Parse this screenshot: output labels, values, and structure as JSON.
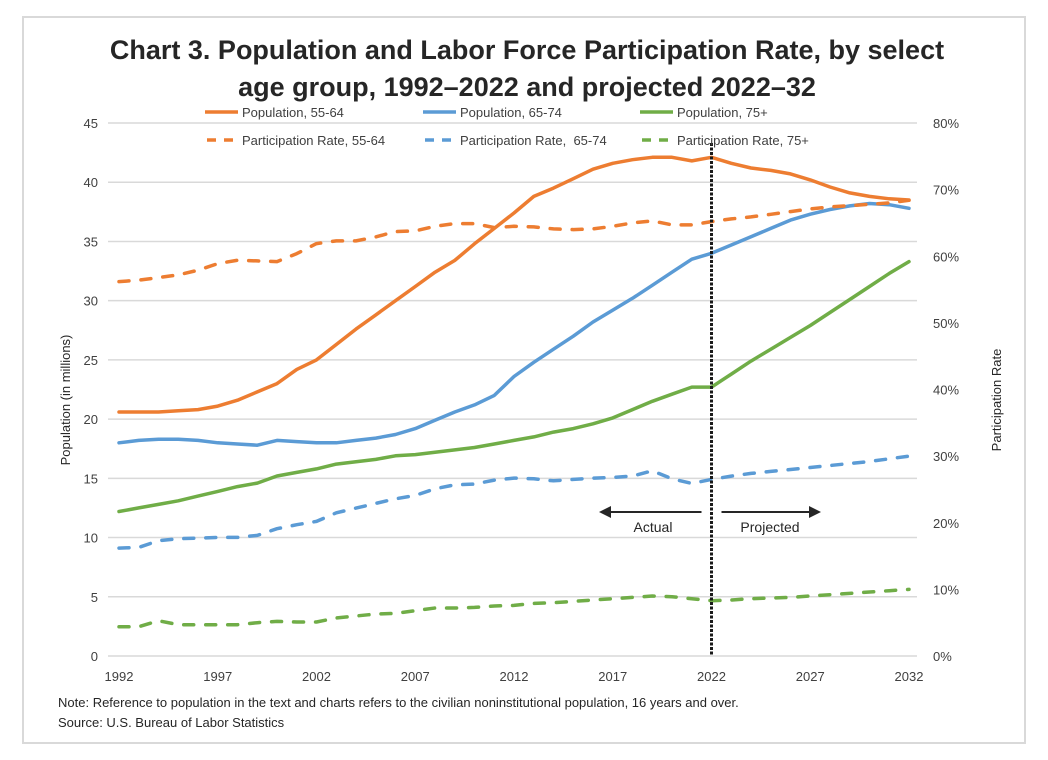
{
  "chart_data": {
    "type": "line",
    "title_lines": [
      "Chart 3. Population and Labor Force Participation Rate, by select",
      "age group, 1992–2022 and projected 2022–32"
    ],
    "xlabel": "",
    "ylabel": "Population (in millions)",
    "y2label": "Participation Rate",
    "ylim": [
      0,
      45
    ],
    "y2lim": [
      0,
      80
    ],
    "grid": true,
    "legend_position": "top",
    "x": [
      1992,
      1993,
      1994,
      1995,
      1996,
      1997,
      1998,
      1999,
      2000,
      2001,
      2002,
      2003,
      2004,
      2005,
      2006,
      2007,
      2008,
      2009,
      2010,
      2011,
      2012,
      2013,
      2014,
      2015,
      2016,
      2017,
      2018,
      2019,
      2020,
      2021,
      2022,
      2023,
      2024,
      2025,
      2026,
      2027,
      2028,
      2029,
      2030,
      2031,
      2032
    ],
    "x_ticks": [
      "1992",
      "1997",
      "2002",
      "2007",
      "2012",
      "2017",
      "2022",
      "2027",
      "2032"
    ],
    "y_ticks": [
      "0",
      "5",
      "10",
      "15",
      "20",
      "25",
      "30",
      "35",
      "40",
      "45"
    ],
    "y2_ticks": [
      "0%",
      "10%",
      "20%",
      "30%",
      "40%",
      "50%",
      "60%",
      "70%",
      "80%"
    ],
    "series": [
      {
        "name": "Population, 55-64",
        "axis": "left",
        "style": "solid",
        "color": "#ED7D31",
        "values": [
          20.6,
          20.6,
          20.6,
          20.7,
          20.8,
          21.1,
          21.6,
          22.3,
          23.0,
          24.2,
          25.0,
          26.3,
          27.6,
          28.8,
          30.0,
          31.2,
          32.4,
          33.4,
          34.8,
          36.1,
          37.4,
          38.8,
          39.5,
          40.3,
          41.1,
          41.6,
          41.9,
          42.1,
          42.1,
          41.8,
          42.1,
          41.6,
          41.2,
          41.0,
          40.7,
          40.2,
          39.6,
          39.1,
          38.8,
          38.6,
          38.5
        ]
      },
      {
        "name": "Population, 65-74",
        "axis": "left",
        "style": "solid",
        "color": "#5B9BD5",
        "values": [
          18.0,
          18.2,
          18.3,
          18.3,
          18.2,
          18.0,
          17.9,
          17.8,
          18.2,
          18.1,
          18.0,
          18.0,
          18.2,
          18.4,
          18.7,
          19.2,
          19.9,
          20.6,
          21.2,
          22.0,
          23.6,
          24.8,
          25.9,
          27.0,
          28.2,
          29.2,
          30.2,
          31.3,
          32.4,
          33.5,
          34.0,
          34.7,
          35.4,
          36.1,
          36.8,
          37.3,
          37.7,
          38.0,
          38.2,
          38.1,
          37.8
        ]
      },
      {
        "name": "Population, 75+",
        "axis": "left",
        "style": "solid",
        "color": "#70AD47",
        "values": [
          12.2,
          12.5,
          12.8,
          13.1,
          13.5,
          13.9,
          14.3,
          14.6,
          15.2,
          15.5,
          15.8,
          16.2,
          16.4,
          16.6,
          16.9,
          17.0,
          17.2,
          17.4,
          17.6,
          17.9,
          18.2,
          18.5,
          18.9,
          19.2,
          19.6,
          20.1,
          20.8,
          21.5,
          22.1,
          22.7,
          22.7,
          23.8,
          24.9,
          25.9,
          26.9,
          27.9,
          29.0,
          30.1,
          31.2,
          32.3,
          33.3
        ]
      },
      {
        "name": "Participation Rate, 55-64",
        "axis": "right",
        "style": "dashed",
        "color": "#ED7D31",
        "values": [
          56.2,
          56.4,
          56.8,
          57.2,
          57.9,
          58.9,
          59.4,
          59.3,
          59.2,
          60.4,
          61.9,
          62.3,
          62.3,
          62.9,
          63.7,
          63.8,
          64.5,
          64.9,
          64.9,
          64.3,
          64.5,
          64.4,
          64.1,
          64.0,
          64.1,
          64.5,
          65.0,
          65.3,
          64.7,
          64.7,
          65.2,
          65.6,
          65.9,
          66.3,
          66.7,
          67.1,
          67.4,
          67.6,
          67.8,
          68.0,
          68.4
        ]
      },
      {
        "name": "Participation Rate,  65-74",
        "axis": "right",
        "style": "dashed",
        "color": "#5B9BD5",
        "values": [
          16.2,
          16.3,
          17.3,
          17.6,
          17.7,
          17.8,
          17.8,
          18.1,
          19.1,
          19.7,
          20.2,
          21.5,
          22.2,
          22.9,
          23.6,
          24.1,
          25.1,
          25.7,
          25.8,
          26.4,
          26.7,
          26.6,
          26.3,
          26.5,
          26.7,
          26.8,
          27.0,
          27.8,
          26.6,
          25.9,
          26.5,
          27.0,
          27.4,
          27.7,
          28.0,
          28.3,
          28.6,
          28.9,
          29.2,
          29.6,
          30.0
        ]
      },
      {
        "name": "Participation Rate, 75+",
        "axis": "right",
        "style": "dashed",
        "color": "#70AD47",
        "values": [
          4.4,
          4.4,
          5.3,
          4.7,
          4.7,
          4.7,
          4.7,
          5.0,
          5.2,
          5.1,
          5.1,
          5.7,
          6.0,
          6.3,
          6.4,
          6.8,
          7.2,
          7.2,
          7.3,
          7.5,
          7.6,
          7.9,
          8.0,
          8.2,
          8.4,
          8.6,
          8.8,
          9.0,
          8.9,
          8.6,
          8.3,
          8.4,
          8.6,
          8.7,
          8.8,
          9.0,
          9.2,
          9.4,
          9.6,
          9.8,
          10.0
        ]
      }
    ],
    "annotations": {
      "divider_year": 2022,
      "actual_label": "Actual",
      "projected_label": "Projected"
    },
    "notes": {
      "note_prefix": "Note",
      "note_text": ": Reference to population in the text and charts refers to the civilian noninstitutional population, 16 years and over.",
      "source": "Source: U.S. Bureau of Labor Statistics"
    }
  }
}
